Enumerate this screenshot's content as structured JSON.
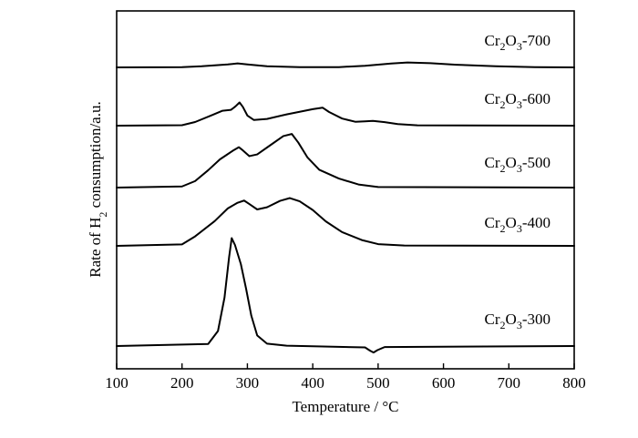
{
  "chart_data": {
    "type": "line",
    "xlabel": "Temperature / °C",
    "ylabel_parts": {
      "before": "Rate of H",
      "sub": "2",
      "after": " consumption/a.u."
    },
    "xlim": [
      100,
      800
    ],
    "xticks": [
      100,
      200,
      300,
      400,
      500,
      600,
      700,
      800
    ],
    "y_ticks_shown": false,
    "grid": false,
    "legend": "none (each curve labeled on the right)",
    "series": [
      {
        "name": "Cr2O3-700",
        "label_parts": [
          "Cr",
          "2",
          "O",
          "3",
          "-700"
        ],
        "baseline": 0.0,
        "points": [
          [
            100,
            0.0
          ],
          [
            200,
            0.0
          ],
          [
            230,
            0.02
          ],
          [
            270,
            0.08
          ],
          [
            285,
            0.14
          ],
          [
            300,
            0.08
          ],
          [
            330,
            0.02
          ],
          [
            380,
            0.0
          ],
          [
            440,
            0.0
          ],
          [
            480,
            0.03
          ],
          [
            520,
            0.12
          ],
          [
            545,
            0.15
          ],
          [
            580,
            0.12
          ],
          [
            620,
            0.07
          ],
          [
            680,
            0.03
          ],
          [
            740,
            0.0
          ],
          [
            800,
            0.0
          ]
        ]
      },
      {
        "name": "Cr2O3-600",
        "label_parts": [
          "Cr",
          "2",
          "O",
          "3",
          "-600"
        ],
        "baseline": 0.0,
        "points": [
          [
            100,
            0.0
          ],
          [
            200,
            0.0
          ],
          [
            220,
            0.05
          ],
          [
            245,
            0.3
          ],
          [
            262,
            0.48
          ],
          [
            275,
            0.38
          ],
          [
            282,
            0.5
          ],
          [
            288,
            0.75
          ],
          [
            293,
            0.55
          ],
          [
            300,
            0.22
          ],
          [
            310,
            0.12
          ],
          [
            330,
            0.16
          ],
          [
            360,
            0.3
          ],
          [
            400,
            0.48
          ],
          [
            415,
            0.55
          ],
          [
            425,
            0.4
          ],
          [
            445,
            0.15
          ],
          [
            465,
            0.08
          ],
          [
            480,
            0.12
          ],
          [
            492,
            0.15
          ],
          [
            510,
            0.1
          ],
          [
            530,
            0.04
          ],
          [
            560,
            0.0
          ],
          [
            800,
            0.0
          ]
        ]
      },
      {
        "name": "Cr2O3-500",
        "label_parts": [
          "Cr",
          "2",
          "O",
          "3",
          "-500"
        ],
        "baseline": 0.0,
        "points": [
          [
            100,
            0.0
          ],
          [
            200,
            0.0
          ],
          [
            220,
            0.08
          ],
          [
            240,
            0.3
          ],
          [
            258,
            0.55
          ],
          [
            270,
            0.6
          ],
          [
            278,
            0.62
          ],
          [
            287,
            0.78
          ],
          [
            293,
            0.68
          ],
          [
            303,
            0.5
          ],
          [
            315,
            0.55
          ],
          [
            335,
            0.75
          ],
          [
            355,
            0.95
          ],
          [
            368,
            1.0
          ],
          [
            378,
            0.85
          ],
          [
            392,
            0.48
          ],
          [
            410,
            0.32
          ],
          [
            440,
            0.14
          ],
          [
            470,
            0.04
          ],
          [
            500,
            0.0
          ],
          [
            800,
            0.0
          ]
        ]
      },
      {
        "name": "Cr2O3-400",
        "label_parts": [
          "Cr",
          "2",
          "O",
          "3",
          "-400"
        ],
        "baseline": 0.0,
        "points": [
          [
            100,
            0.0
          ],
          [
            200,
            0.0
          ],
          [
            220,
            0.1
          ],
          [
            250,
            0.45
          ],
          [
            270,
            0.7
          ],
          [
            285,
            0.72
          ],
          [
            295,
            0.82
          ],
          [
            303,
            0.75
          ],
          [
            315,
            0.55
          ],
          [
            330,
            0.65
          ],
          [
            350,
            0.8
          ],
          [
            365,
            0.84
          ],
          [
            380,
            0.8
          ],
          [
            400,
            0.62
          ],
          [
            420,
            0.42
          ],
          [
            445,
            0.22
          ],
          [
            475,
            0.08
          ],
          [
            500,
            0.02
          ],
          [
            540,
            0.0
          ],
          [
            800,
            0.0
          ]
        ]
      },
      {
        "name": "Cr2O3-300",
        "label_parts": [
          "Cr",
          "2",
          "O",
          "3",
          "-300"
        ],
        "baseline": 0.0,
        "points": [
          [
            100,
            0.0
          ],
          [
            240,
            0.0
          ],
          [
            255,
            0.3
          ],
          [
            265,
            1.6
          ],
          [
            272,
            3.6
          ],
          [
            276,
            4.2
          ],
          [
            281,
            3.8
          ],
          [
            290,
            3.0
          ],
          [
            298,
            2.2
          ],
          [
            306,
            1.0
          ],
          [
            315,
            0.25
          ],
          [
            330,
            0.05
          ],
          [
            360,
            0.0
          ],
          [
            480,
            0.0
          ],
          [
            488,
            -0.2
          ],
          [
            493,
            -0.3
          ],
          [
            499,
            -0.15
          ],
          [
            510,
            0.0
          ],
          [
            800,
            0.0
          ]
        ]
      }
    ]
  }
}
